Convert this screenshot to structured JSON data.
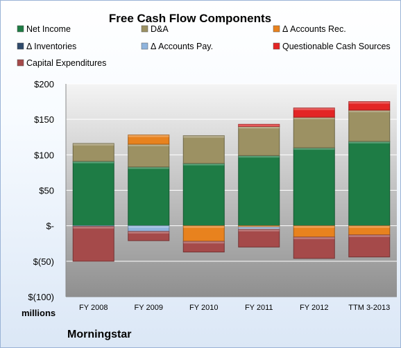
{
  "chart_data": {
    "type": "bar",
    "stacked": true,
    "title": "Free Cash Flow Components",
    "unit_label": "millions",
    "source": "Morningstar",
    "categories": [
      "FY 2008",
      "FY 2009",
      "FY 2010",
      "FY 2011",
      "FY 2012",
      "TTM 3-2013"
    ],
    "ylim": [
      -100,
      200
    ],
    "yticks": [
      200,
      150,
      100,
      50,
      0,
      -50,
      -100
    ],
    "ytick_labels": [
      "$200",
      "$150",
      "$100",
      "$50",
      "$-",
      "$(50)",
      "$(100)"
    ],
    "legend_position": "top",
    "series": [
      {
        "name": "Net Income",
        "color": "#1e7c45",
        "values": [
          91,
          83,
          88,
          99,
          110,
          119
        ]
      },
      {
        "name": "D&A",
        "color": "#9c9163",
        "values": [
          25,
          32,
          39,
          41,
          43,
          44
        ]
      },
      {
        "name": "Δ Accounts Rec.",
        "color": "#e8821e",
        "values": [
          0,
          13,
          -22,
          -2,
          -16,
          -13
        ]
      },
      {
        "name": "Δ Inventories",
        "color": "#2e4a6b",
        "values": [
          0,
          0,
          0,
          0,
          0,
          0
        ]
      },
      {
        "name": "Δ Accounts Pay.",
        "color": "#8fb4dd",
        "values": [
          -1,
          -8,
          0,
          -3,
          0,
          0
        ]
      },
      {
        "name": "Questionable Cash Sources",
        "color": "#e32525",
        "values": [
          0,
          0,
          0,
          3,
          13,
          12
        ]
      },
      {
        "name": "Capital Expenditures",
        "color": "#a54a4a",
        "values": [
          -49,
          -13,
          -15,
          -25,
          -30,
          -31
        ]
      }
    ]
  }
}
